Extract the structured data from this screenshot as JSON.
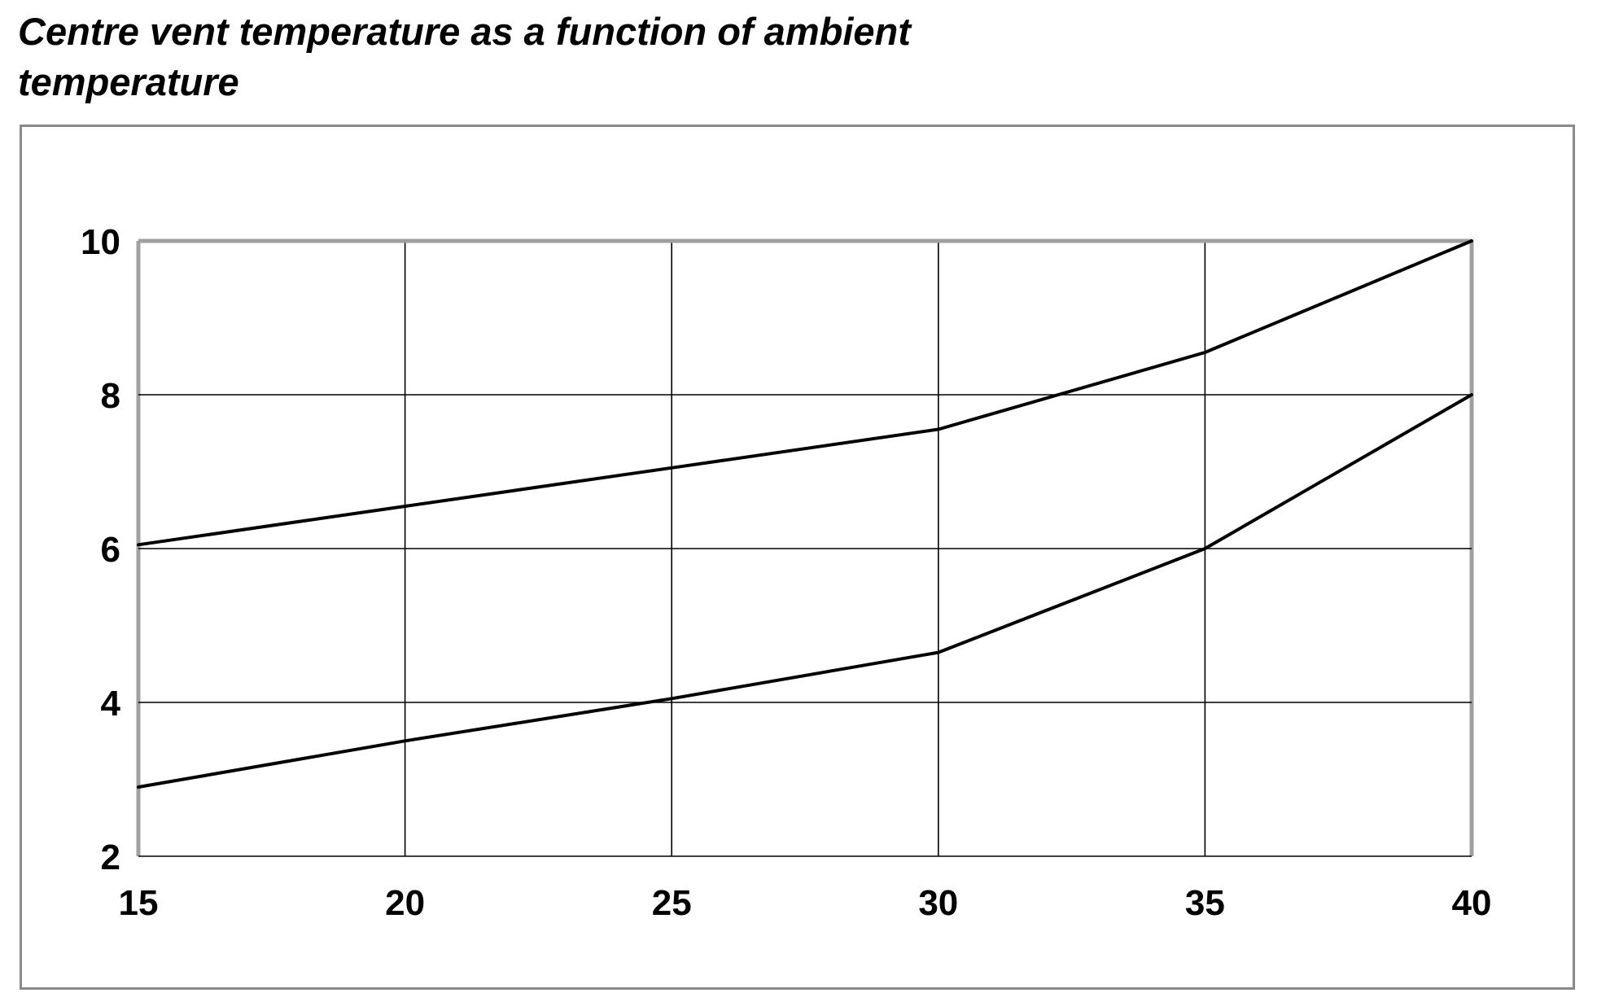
{
  "chart_data": {
    "type": "line",
    "title": "Centre vent temperature as a function of ambient temperature",
    "xlabel": "",
    "ylabel": "",
    "x": [
      15,
      20,
      25,
      30,
      35,
      40
    ],
    "xlim": [
      15,
      40
    ],
    "ylim": [
      2,
      10
    ],
    "xticks": [
      "15",
      "20",
      "25",
      "30",
      "35",
      "40"
    ],
    "yticks": [
      "10",
      "8",
      "6",
      "4",
      "2"
    ],
    "grid": true,
    "legend": "none",
    "series": [
      {
        "values": [
          6.05,
          6.55,
          7.05,
          7.55,
          8.55,
          10.0
        ],
        "color": "#000000"
      },
      {
        "values": [
          2.9,
          3.5,
          4.05,
          4.65,
          6.0,
          8.0
        ],
        "color": "#000000"
      }
    ],
    "gridline_color": "#000000",
    "frame_color": "#a0a0a0"
  }
}
